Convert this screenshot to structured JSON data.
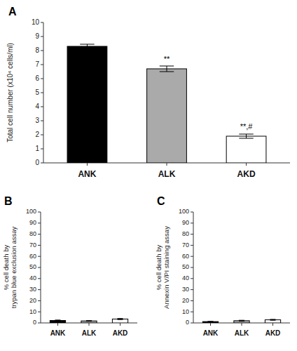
{
  "chart_data": [
    {
      "type": "bar",
      "title": "A",
      "categories": [
        "ANK",
        "ALK",
        "AKD"
      ],
      "values": [
        8.3,
        6.7,
        1.9
      ],
      "errors": [
        0.15,
        0.2,
        0.15
      ],
      "colors": [
        "#000000",
        "#aaaaaa",
        "#ffffff"
      ],
      "y_label": "Total cell number (x10⁴ cells/ml)",
      "ylim": [
        0,
        10
      ],
      "yticks": [
        0,
        1,
        2,
        3,
        4,
        5,
        6,
        7,
        8,
        9,
        10
      ],
      "annotations": [
        {
          "x": "ALK",
          "y": 7.1,
          "text": "**"
        },
        {
          "x": "AKD",
          "y": 2.3,
          "text": "**,#"
        }
      ]
    },
    {
      "type": "bar",
      "title": "B",
      "categories": [
        "ANK",
        "ALK",
        "AKD"
      ],
      "values": [
        2.2,
        1.8,
        3.5
      ],
      "errors": [
        0.4,
        0.3,
        0.5
      ],
      "colors": [
        "#000000",
        "#aaaaaa",
        "#ffffff"
      ],
      "y_label": "% cell death by\ntrypan blue exclusion assay",
      "ylim": [
        0,
        100
      ],
      "yticks": [
        0,
        10,
        20,
        30,
        40,
        50,
        60,
        70,
        80,
        90,
        100
      ]
    },
    {
      "type": "bar",
      "title": "C",
      "categories": [
        "ANK",
        "ALK",
        "AKD"
      ],
      "values": [
        1.2,
        2.0,
        2.8
      ],
      "errors": [
        0.2,
        0.4,
        0.4
      ],
      "colors": [
        "#000000",
        "#aaaaaa",
        "#ffffff"
      ],
      "y_label": "% cell death by\nAnnexin V/PI staining assay",
      "ylim": [
        0,
        100
      ],
      "yticks": [
        0,
        10,
        20,
        30,
        40,
        50,
        60,
        70,
        80,
        90,
        100
      ]
    }
  ]
}
